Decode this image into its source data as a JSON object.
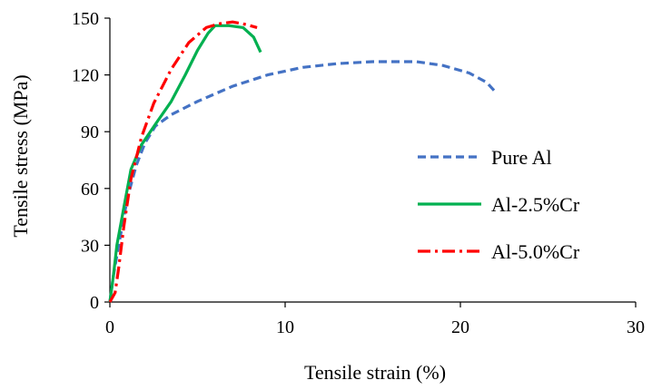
{
  "chart_data": {
    "type": "line",
    "xlabel": "Tensile strain (%)",
    "ylabel": "Tensile stress (MPa)",
    "xlim": [
      0,
      30
    ],
    "ylim": [
      0,
      150
    ],
    "x_ticks": [
      0,
      10,
      20,
      30
    ],
    "y_ticks": [
      0,
      30,
      60,
      90,
      120,
      150
    ],
    "grid": false,
    "legend_position": "right",
    "series": [
      {
        "name": "Pure Al",
        "color": "#4472C4",
        "dash": "dashed",
        "points": [
          [
            0,
            0
          ],
          [
            0.2,
            14
          ],
          [
            0.5,
            30
          ],
          [
            1.0,
            55
          ],
          [
            1.5,
            72
          ],
          [
            2.0,
            84
          ],
          [
            2.6,
            93
          ],
          [
            3.5,
            99
          ],
          [
            5.0,
            106
          ],
          [
            7.0,
            114
          ],
          [
            9.0,
            120
          ],
          [
            11.0,
            124
          ],
          [
            13.0,
            126
          ],
          [
            15.0,
            127
          ],
          [
            17.5,
            127
          ],
          [
            19.0,
            125
          ],
          [
            20.5,
            121
          ],
          [
            21.5,
            116
          ],
          [
            22.0,
            111
          ]
        ]
      },
      {
        "name": "Al-2.5%Cr",
        "color": "#00B050",
        "dash": "solid",
        "points": [
          [
            0,
            0
          ],
          [
            0.2,
            14
          ],
          [
            0.4,
            30
          ],
          [
            0.8,
            50
          ],
          [
            1.2,
            70
          ],
          [
            1.8,
            83
          ],
          [
            2.6,
            94
          ],
          [
            3.5,
            106
          ],
          [
            4.3,
            120
          ],
          [
            5.0,
            133
          ],
          [
            5.6,
            142
          ],
          [
            6.0,
            146
          ],
          [
            6.8,
            146
          ],
          [
            7.6,
            145
          ],
          [
            8.2,
            140
          ],
          [
            8.6,
            132
          ]
        ]
      },
      {
        "name": "Al-5.0%Cr",
        "color": "#FF0000",
        "dash": "dashdot",
        "points": [
          [
            0,
            0
          ],
          [
            0.3,
            5
          ],
          [
            0.5,
            18
          ],
          [
            0.8,
            40
          ],
          [
            1.2,
            65
          ],
          [
            1.8,
            87
          ],
          [
            2.5,
            105
          ],
          [
            3.5,
            123
          ],
          [
            4.5,
            137
          ],
          [
            5.5,
            145
          ],
          [
            6.2,
            147
          ],
          [
            7.0,
            148
          ],
          [
            7.6,
            147
          ],
          [
            8.0,
            146
          ],
          [
            8.4,
            145
          ]
        ]
      }
    ]
  }
}
